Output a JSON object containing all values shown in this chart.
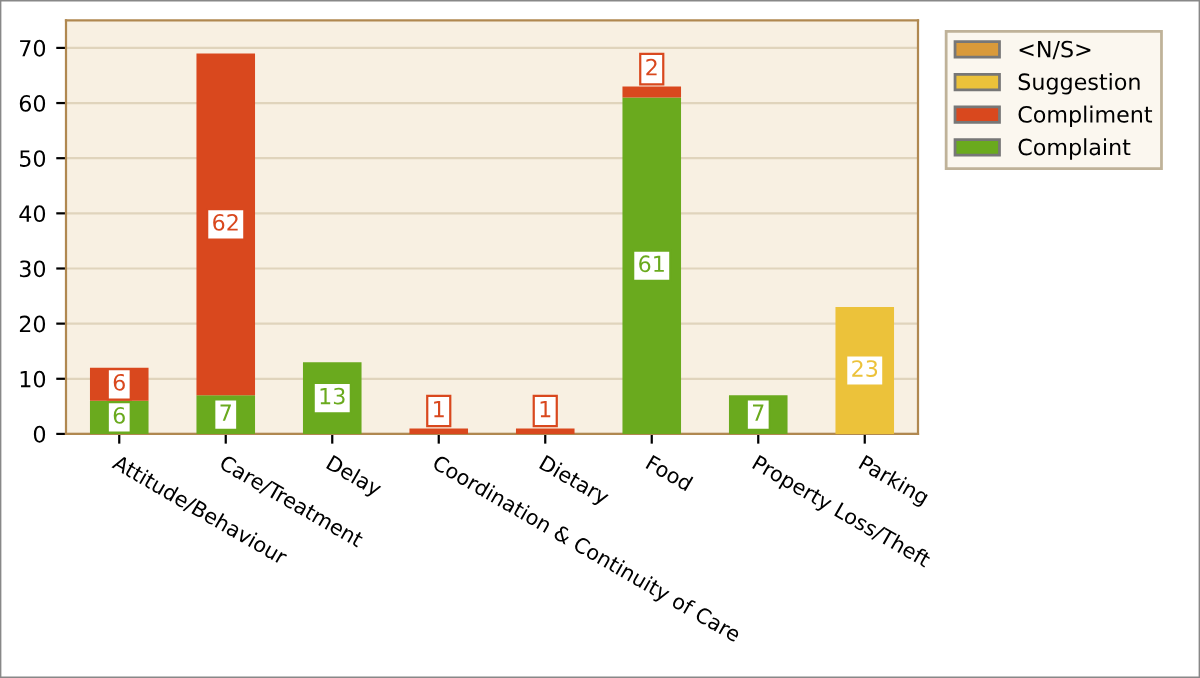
{
  "chart_data": {
    "type": "bar",
    "stacked": true,
    "categories": [
      "Attitude/Behaviour",
      "Care/Treatment",
      "Delay",
      "Coordination & Continuity of Care",
      "Dietary",
      "Food",
      "Property Loss/Theft",
      "Parking"
    ],
    "series": [
      {
        "name": "Complaint",
        "color": "#6aaa1e",
        "values": [
          6,
          7,
          13,
          null,
          null,
          61,
          7,
          null
        ]
      },
      {
        "name": "Compliment",
        "color": "#d9481e",
        "values": [
          6,
          62,
          null,
          1,
          1,
          2,
          null,
          null
        ]
      },
      {
        "name": "Suggestion",
        "color": "#ecc23a",
        "values": [
          null,
          null,
          null,
          null,
          null,
          null,
          null,
          23
        ]
      },
      {
        "name": "<N/S>",
        "color": "#d99a3a",
        "values": [
          null,
          null,
          null,
          null,
          null,
          null,
          null,
          null
        ]
      }
    ],
    "ylim": [
      0,
      75
    ],
    "yticks": [
      0,
      10,
      20,
      30,
      40,
      50,
      60,
      70
    ],
    "grid": "y",
    "legend": "top right",
    "data_labels": true
  }
}
